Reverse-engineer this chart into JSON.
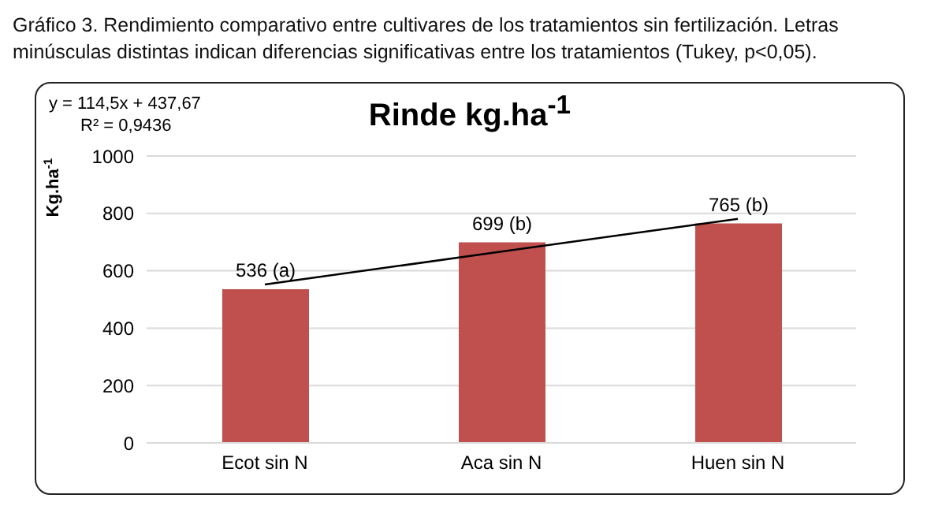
{
  "chart_data": {
    "type": "bar",
    "title": "Rinde kg.ha$^{-1}$",
    "ylabel": "Kg.ha$^{-1}$",
    "annotations": [
      "Gráfico 3. Rendimiento comparativo entre cultivares de los tratamientos sin fertilización. Letras minúsculas distintas indican diferencias significativas entre los tratamientos (Tukey, p<0,05).",
      "y = 114,5x + 437,67",
      "R² = 0,9436"
    ],
    "categories": [
      "Ecot sin N",
      "Aca sin N",
      "Huen sin N"
    ],
    "series": [
      {
        "color": "#c0504d",
        "values": [
          536,
          699,
          765
        ],
        "value_labels": [
          "536 (a)",
          "699 (b)",
          "765 (b)"
        ]
      },
      {
        "type": "line",
        "color": "#000000",
        "x": [
          "Ecot sin N",
          "Aca sin N",
          "Huen sin N"
        ],
        "values": [
          552,
          667,
          781
        ],
        "marker": "none"
      }
    ],
    "ylim": [
      0,
      1000
    ],
    "yticks": [
      0,
      200,
      400,
      600,
      800,
      1000
    ],
    "grid": "y"
  }
}
